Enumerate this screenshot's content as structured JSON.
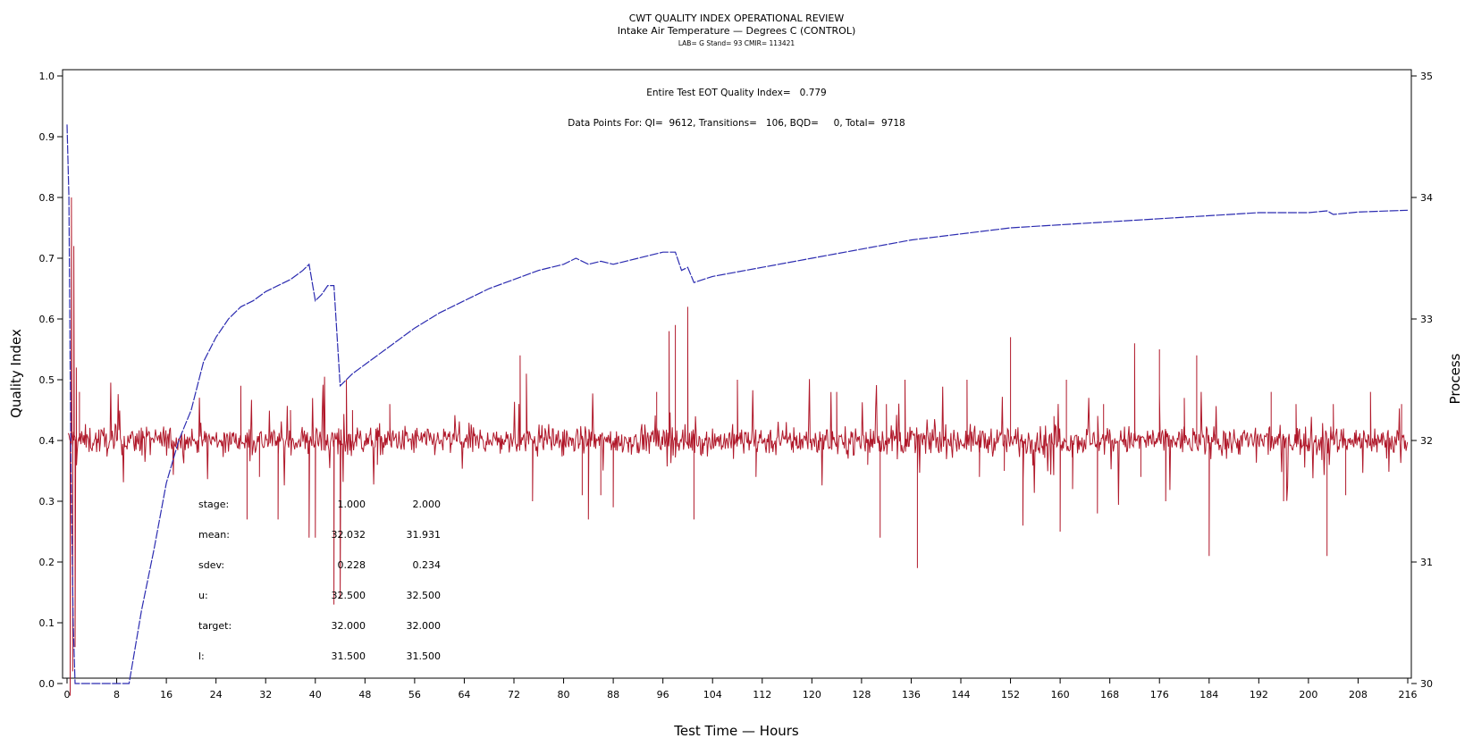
{
  "chart_data": {
    "type": "line",
    "title": "CWT QUALITY INDEX OPERATIONAL REVIEW",
    "subtitle": "Intake Air Temperature — Degrees C (CONTROL)",
    "subtitle2": "LAB= G Stand= 93 CMIR= 113421",
    "xlabel": "Test Time — Hours",
    "ylabel_left": "Quality Index",
    "ylabel_right": "Process",
    "xlim": [
      0,
      216
    ],
    "ylim_left": [
      0.0,
      1.0
    ],
    "ylim_right": [
      30,
      35
    ],
    "x_ticks": [
      "0",
      "8",
      "16",
      "24",
      "32",
      "40",
      "48",
      "56",
      "64",
      "72",
      "80",
      "88",
      "96",
      "104",
      "112",
      "120",
      "128",
      "136",
      "144",
      "152",
      "160",
      "168",
      "176",
      "184",
      "192",
      "200",
      "208",
      "216"
    ],
    "y_left_ticks": [
      "0.0",
      "0.1",
      "0.2",
      "0.3",
      "0.4",
      "0.5",
      "0.6",
      "0.7",
      "0.8",
      "0.9",
      "1.0"
    ],
    "y_right_ticks": [
      "30",
      "31",
      "32",
      "33",
      "34",
      "35"
    ],
    "grid": false,
    "annotations": [
      "Entire Test EOT Quality Index=   0.779",
      "Data Points For: QI=  9612, Transitions=   106, BQD=     0, Total=  9718"
    ],
    "stats_table": {
      "rows": [
        {
          "label": "stage:",
          "values": [
            "1.000",
            "2.000"
          ]
        },
        {
          "label": "mean:",
          "values": [
            "32.032",
            "31.931"
          ]
        },
        {
          "label": "sdev:",
          "values": [
            "0.228",
            "0.234"
          ]
        },
        {
          "label": "u:",
          "values": [
            "32.500",
            "32.500"
          ]
        },
        {
          "label": "target:",
          "values": [
            "32.000",
            "32.000"
          ]
        },
        {
          "label": "l:",
          "values": [
            "31.500",
            "31.500"
          ]
        }
      ]
    },
    "series": [
      {
        "axis": "left",
        "color": "#2b2bb0",
        "points": [
          [
            0,
            0.92
          ],
          [
            0.3,
            0.8
          ],
          [
            0.6,
            0.38
          ],
          [
            1,
            0.1
          ],
          [
            1.3,
            0.0
          ],
          [
            10,
            0.0
          ],
          [
            12,
            0.12
          ],
          [
            14,
            0.22
          ],
          [
            16,
            0.33
          ],
          [
            18,
            0.4
          ],
          [
            20,
            0.45
          ],
          [
            22,
            0.53
          ],
          [
            24,
            0.57
          ],
          [
            26,
            0.6
          ],
          [
            28,
            0.62
          ],
          [
            30,
            0.63
          ],
          [
            32,
            0.645
          ],
          [
            34,
            0.655
          ],
          [
            36,
            0.665
          ],
          [
            38,
            0.68
          ],
          [
            39,
            0.69
          ],
          [
            40,
            0.63
          ],
          [
            41,
            0.64
          ],
          [
            42,
            0.655
          ],
          [
            43,
            0.655
          ],
          [
            44,
            0.49
          ],
          [
            46,
            0.51
          ],
          [
            48,
            0.525
          ],
          [
            52,
            0.555
          ],
          [
            56,
            0.585
          ],
          [
            60,
            0.61
          ],
          [
            64,
            0.63
          ],
          [
            68,
            0.65
          ],
          [
            72,
            0.665
          ],
          [
            76,
            0.68
          ],
          [
            80,
            0.69
          ],
          [
            82,
            0.7
          ],
          [
            84,
            0.69
          ],
          [
            86,
            0.695
          ],
          [
            88,
            0.69
          ],
          [
            92,
            0.7
          ],
          [
            96,
            0.71
          ],
          [
            98,
            0.71
          ],
          [
            99,
            0.68
          ],
          [
            100,
            0.685
          ],
          [
            101,
            0.66
          ],
          [
            104,
            0.67
          ],
          [
            112,
            0.685
          ],
          [
            120,
            0.7
          ],
          [
            128,
            0.715
          ],
          [
            136,
            0.73
          ],
          [
            144,
            0.74
          ],
          [
            152,
            0.75
          ],
          [
            160,
            0.755
          ],
          [
            168,
            0.76
          ],
          [
            176,
            0.765
          ],
          [
            184,
            0.77
          ],
          [
            192,
            0.775
          ],
          [
            200,
            0.775
          ],
          [
            203,
            0.778
          ],
          [
            204,
            0.772
          ],
          [
            208,
            0.776
          ],
          [
            216,
            0.779
          ]
        ]
      },
      {
        "axis": "right",
        "color": "#b0182a",
        "baseline": 32.0,
        "noise_sd": 0.1,
        "spikes": [
          [
            0.5,
            29.9
          ],
          [
            0.7,
            34.0
          ],
          [
            0.9,
            30.1
          ],
          [
            1.1,
            33.6
          ],
          [
            1.3,
            30.3
          ],
          [
            1.5,
            32.6
          ],
          [
            2,
            32.4
          ],
          [
            28,
            32.45
          ],
          [
            29,
            31.35
          ],
          [
            31,
            31.7
          ],
          [
            34,
            31.35
          ],
          [
            36,
            32.25
          ],
          [
            39,
            31.2
          ],
          [
            40,
            31.2
          ],
          [
            43,
            30.65
          ],
          [
            44,
            30.7
          ],
          [
            45,
            32.5
          ],
          [
            46,
            32.25
          ],
          [
            50,
            31.8
          ],
          [
            52,
            32.3
          ],
          [
            73,
            32.7
          ],
          [
            74,
            32.55
          ],
          [
            75,
            31.5
          ],
          [
            77,
            32.1
          ],
          [
            83,
            31.55
          ],
          [
            84,
            31.35
          ],
          [
            86,
            31.55
          ],
          [
            88,
            31.45
          ],
          [
            95,
            32.4
          ],
          [
            97,
            32.9
          ],
          [
            98,
            32.95
          ],
          [
            100,
            33.1
          ],
          [
            101,
            31.35
          ],
          [
            108,
            32.5
          ],
          [
            111,
            31.7
          ],
          [
            117,
            31.9
          ],
          [
            124,
            32.4
          ],
          [
            129,
            31.8
          ],
          [
            131,
            31.2
          ],
          [
            132,
            32.3
          ],
          [
            135,
            32.5
          ],
          [
            137,
            30.95
          ],
          [
            145,
            32.5
          ],
          [
            147,
            31.7
          ],
          [
            151,
            31.75
          ],
          [
            152,
            32.85
          ],
          [
            154,
            31.3
          ],
          [
            159,
            32.2
          ],
          [
            160,
            31.25
          ],
          [
            161,
            32.5
          ],
          [
            162,
            31.6
          ],
          [
            166,
            31.4
          ],
          [
            167,
            32.3
          ],
          [
            172,
            32.8
          ],
          [
            173,
            31.7
          ],
          [
            176,
            32.75
          ],
          [
            177,
            31.5
          ],
          [
            180,
            32.35
          ],
          [
            182,
            32.7
          ],
          [
            184,
            31.05
          ],
          [
            185,
            32.05
          ],
          [
            194,
            32.4
          ],
          [
            196,
            31.5
          ],
          [
            198,
            32.3
          ],
          [
            203,
            31.05
          ],
          [
            204,
            32.3
          ],
          [
            206,
            31.55
          ],
          [
            210,
            32.4
          ],
          [
            215,
            32.3
          ]
        ]
      }
    ]
  }
}
